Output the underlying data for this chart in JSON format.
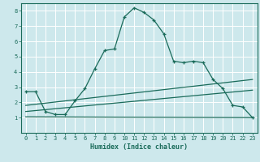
{
  "xlabel": "Humidex (Indice chaleur)",
  "background_color": "#cde8ec",
  "grid_color": "#ffffff",
  "line_color": "#1a6b5a",
  "xlim": [
    -0.5,
    23.5
  ],
  "ylim": [
    0,
    8.5
  ],
  "xticks": [
    0,
    1,
    2,
    3,
    4,
    5,
    6,
    7,
    8,
    9,
    10,
    11,
    12,
    13,
    14,
    15,
    16,
    17,
    18,
    19,
    20,
    21,
    22,
    23
  ],
  "yticks": [
    1,
    2,
    3,
    4,
    5,
    6,
    7,
    8
  ],
  "series": [
    {
      "x": [
        0,
        1,
        2,
        3,
        4,
        5,
        6,
        7,
        8,
        9,
        10,
        11,
        12,
        13,
        14,
        15,
        16,
        17,
        18,
        19,
        20,
        21,
        22,
        23
      ],
      "y": [
        2.7,
        2.7,
        1.4,
        1.2,
        1.2,
        2.1,
        2.9,
        4.2,
        5.4,
        5.5,
        7.6,
        8.2,
        7.9,
        7.4,
        6.5,
        4.7,
        4.6,
        4.7,
        4.6,
        3.5,
        2.9,
        1.8,
        1.7,
        1.0
      ],
      "marker": "+"
    },
    {
      "x": [
        0,
        23
      ],
      "y": [
        1.05,
        1.0
      ],
      "marker": null
    },
    {
      "x": [
        0,
        23
      ],
      "y": [
        1.4,
        2.8
      ],
      "marker": null
    },
    {
      "x": [
        0,
        23
      ],
      "y": [
        1.8,
        3.5
      ],
      "marker": null
    }
  ]
}
